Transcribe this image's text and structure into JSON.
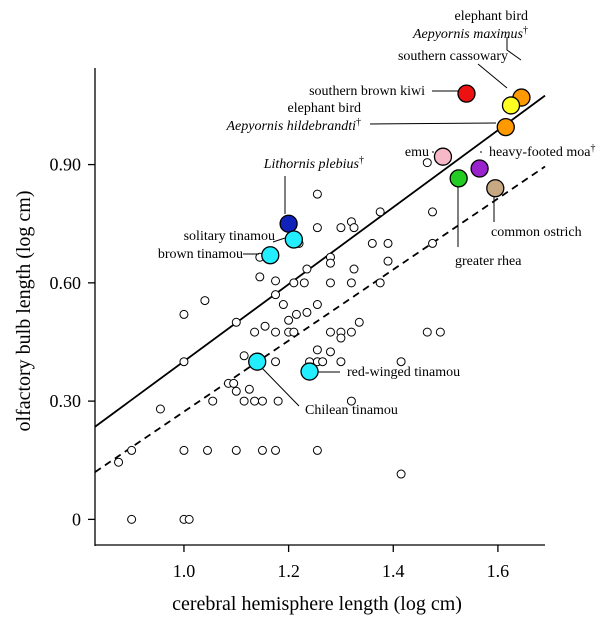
{
  "chart_data": {
    "type": "scatter",
    "title": "",
    "xlabel": "cerebral hemisphere length (log cm)",
    "ylabel": "olfactory bulb length (log cm)",
    "xlim": [
      0.83,
      1.69
    ],
    "ylim": [
      -0.065,
      1.145
    ],
    "xticks": [
      1.0,
      1.2,
      1.4,
      1.6
    ],
    "xtick_labels": [
      "1.0",
      "1.2",
      "1.4",
      "1.6"
    ],
    "yticks": [
      0,
      0.3,
      0.6,
      0.9
    ],
    "ytick_labels": [
      "0",
      "0.30",
      "0.60",
      "0.90"
    ],
    "grid": false,
    "lines": [
      {
        "style": "solid",
        "x": [
          0.83,
          1.69
        ],
        "y": [
          0.235,
          1.075
        ]
      },
      {
        "style": "dashed",
        "x": [
          0.83,
          1.69
        ],
        "y": [
          0.12,
          0.895
        ]
      }
    ],
    "background_points": [
      [
        0.875,
        0.145
      ],
      [
        0.9,
        0.175
      ],
      [
        0.9,
        0.0
      ],
      [
        0.955,
        0.28
      ],
      [
        1.0,
        0.52
      ],
      [
        1.0,
        0.4
      ],
      [
        1.0,
        0.175
      ],
      [
        1.0,
        0.0
      ],
      [
        1.01,
        0.0
      ],
      [
        1.04,
        0.555
      ],
      [
        1.045,
        0.175
      ],
      [
        1.055,
        0.3
      ],
      [
        1.085,
        0.345
      ],
      [
        1.095,
        0.345
      ],
      [
        1.1,
        0.5
      ],
      [
        1.1,
        0.325
      ],
      [
        1.1,
        0.175
      ],
      [
        1.115,
        0.3
      ],
      [
        1.115,
        0.415
      ],
      [
        1.125,
        0.33
      ],
      [
        1.135,
        0.3
      ],
      [
        1.135,
        0.475
      ],
      [
        1.145,
        0.665
      ],
      [
        1.145,
        0.615
      ],
      [
        1.15,
        0.3
      ],
      [
        1.15,
        0.175
      ],
      [
        1.155,
        0.49
      ],
      [
        1.175,
        0.605
      ],
      [
        1.175,
        0.57
      ],
      [
        1.175,
        0.475
      ],
      [
        1.175,
        0.4
      ],
      [
        1.175,
        0.175
      ],
      [
        1.18,
        0.3
      ],
      [
        1.19,
        0.545
      ],
      [
        1.2,
        0.505
      ],
      [
        1.2,
        0.475
      ],
      [
        1.21,
        0.6
      ],
      [
        1.21,
        0.475
      ],
      [
        1.215,
        0.52
      ],
      [
        1.22,
        0.7
      ],
      [
        1.23,
        0.6
      ],
      [
        1.235,
        0.635
      ],
      [
        1.235,
        0.525
      ],
      [
        1.24,
        0.4
      ],
      [
        1.255,
        0.825
      ],
      [
        1.255,
        0.74
      ],
      [
        1.255,
        0.545
      ],
      [
        1.255,
        0.43
      ],
      [
        1.255,
        0.4
      ],
      [
        1.255,
        0.175
      ],
      [
        1.265,
        0.4
      ],
      [
        1.28,
        0.665
      ],
      [
        1.28,
        0.65
      ],
      [
        1.28,
        0.6
      ],
      [
        1.28,
        0.475
      ],
      [
        1.28,
        0.425
      ],
      [
        1.3,
        0.74
      ],
      [
        1.3,
        0.475
      ],
      [
        1.3,
        0.46
      ],
      [
        1.3,
        0.4
      ],
      [
        1.32,
        0.755
      ],
      [
        1.32,
        0.6
      ],
      [
        1.32,
        0.475
      ],
      [
        1.32,
        0.3
      ],
      [
        1.325,
        0.74
      ],
      [
        1.325,
        0.635
      ],
      [
        1.335,
        0.5
      ],
      [
        1.36,
        0.7
      ],
      [
        1.375,
        0.78
      ],
      [
        1.375,
        0.6
      ],
      [
        1.39,
        0.7
      ],
      [
        1.39,
        0.655
      ],
      [
        1.415,
        0.4
      ],
      [
        1.415,
        0.115
      ],
      [
        1.465,
        0.905
      ],
      [
        1.465,
        0.475
      ],
      [
        1.475,
        0.78
      ],
      [
        1.475,
        0.7
      ],
      [
        1.49,
        0.475
      ]
    ],
    "highlighted": [
      {
        "label": "southern brown kiwi",
        "x": 1.54,
        "y": 1.08,
        "color": "#ee1111"
      },
      {
        "label": "elephant bird Aepyornis maximus†",
        "x": 1.645,
        "y": 1.07,
        "color": "#ff9900"
      },
      {
        "label": "southern cassowary",
        "x": 1.625,
        "y": 1.05,
        "color": "#ffff22"
      },
      {
        "label": "elephant bird Aepyornis hildebrandti†",
        "x": 1.615,
        "y": 0.995,
        "color": "#ff9900"
      },
      {
        "label": "emu",
        "x": 1.495,
        "y": 0.92,
        "color": "#f7b8c8"
      },
      {
        "label": "heavy-footed moa†",
        "x": 1.565,
        "y": 0.89,
        "color": "#9922cc"
      },
      {
        "label": "greater rhea",
        "x": 1.525,
        "y": 0.865,
        "color": "#22cc22"
      },
      {
        "label": "common ostrich",
        "x": 1.595,
        "y": 0.84,
        "color": "#c8a882"
      },
      {
        "label": "Lithornis plebius†",
        "x": 1.2,
        "y": 0.75,
        "color": "#1122bb"
      },
      {
        "label": "solitary tinamou",
        "x": 1.21,
        "y": 0.71,
        "color": "#22eeff"
      },
      {
        "label": "brown tinamou",
        "x": 1.165,
        "y": 0.67,
        "color": "#22eeff"
      },
      {
        "label": "Chilean tinamou",
        "x": 1.14,
        "y": 0.4,
        "color": "#22eeff"
      },
      {
        "label": "red-winged tinamou",
        "x": 1.24,
        "y": 0.375,
        "color": "#22eeff"
      }
    ],
    "annotations": [
      {
        "id": "elephant-bird-maximus",
        "lines": [
          {
            "text": "elephant bird",
            "italic": false
          },
          {
            "text": "Aepyornis maximus",
            "italic": true,
            "dagger": true
          }
        ],
        "anchor": "end"
      },
      {
        "id": "southern-cassowary",
        "lines": [
          {
            "text": "southern cassowary",
            "italic": false
          }
        ],
        "anchor": "end"
      },
      {
        "id": "southern-brown-kiwi",
        "lines": [
          {
            "text": "southern brown kiwi",
            "italic": false
          }
        ],
        "anchor": "end"
      },
      {
        "id": "elephant-bird-hildebrandti",
        "lines": [
          {
            "text": "elephant bird",
            "italic": false
          },
          {
            "text": "Aepyornis hildebrandti",
            "italic": true,
            "dagger": true
          }
        ],
        "anchor": "end"
      },
      {
        "id": "emu",
        "lines": [
          {
            "text": "emu",
            "italic": false
          }
        ],
        "anchor": "end"
      },
      {
        "id": "heavy-footed-moa",
        "lines": [
          {
            "text": "heavy-footed moa",
            "italic": false,
            "dagger": true
          }
        ],
        "anchor": "start"
      },
      {
        "id": "lithornis",
        "lines": [
          {
            "text": "Lithornis plebius",
            "italic": true,
            "dagger": true
          }
        ],
        "anchor": "end"
      },
      {
        "id": "common-ostrich",
        "lines": [
          {
            "text": "common ostrich",
            "italic": false
          }
        ],
        "anchor": "start"
      },
      {
        "id": "solitary-tinamou",
        "lines": [
          {
            "text": "solitary tinamou",
            "italic": false
          }
        ],
        "anchor": "end"
      },
      {
        "id": "brown-tinamou",
        "lines": [
          {
            "text": "brown tinamou",
            "italic": false
          }
        ],
        "anchor": "end"
      },
      {
        "id": "greater-rhea",
        "lines": [
          {
            "text": "greater rhea",
            "italic": false
          }
        ],
        "anchor": "start"
      },
      {
        "id": "red-winged-tinamou",
        "lines": [
          {
            "text": "red-winged tinamou",
            "italic": false
          }
        ],
        "anchor": "start"
      },
      {
        "id": "chilean-tinamou",
        "lines": [
          {
            "text": "Chilean tinamou",
            "italic": false
          }
        ],
        "anchor": "start"
      }
    ]
  }
}
